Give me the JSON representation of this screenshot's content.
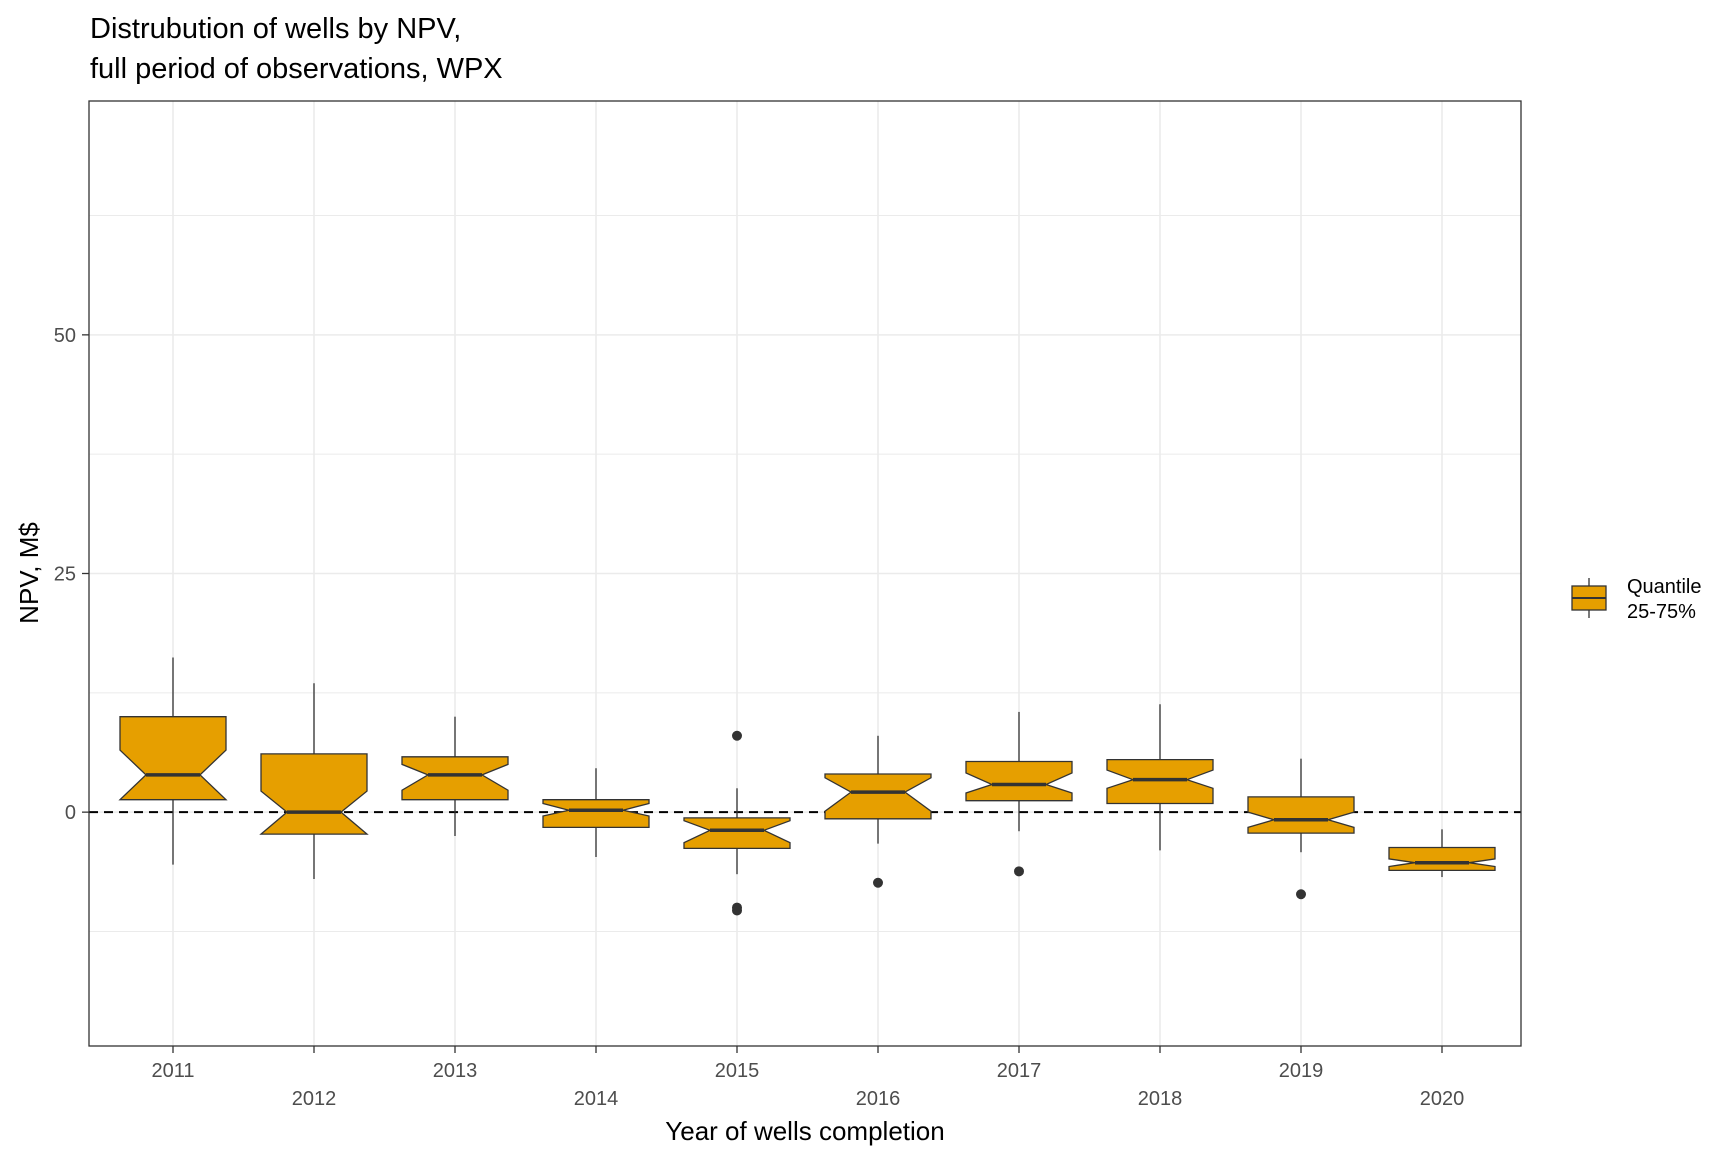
{
  "chart_data": {
    "type": "boxplot",
    "title_lines": [
      "Distrubution of wells by NPV,",
      "full period of observations, WPX"
    ],
    "xlabel": "Year of wells completion",
    "ylabel": "NPV, M$",
    "ylim": [
      -24.5,
      74.5
    ],
    "yticks": [
      0,
      25,
      50
    ],
    "y_minor_gridlines": [
      -12.5,
      12.5,
      37.5,
      62.5
    ],
    "reference_line": 0,
    "grid": true,
    "legend": {
      "position": "right",
      "label": "Quantile\n25-75%",
      "label_lines": [
        "Quantile",
        "25-75%"
      ]
    },
    "colors": {
      "box_fill": "#E69F00",
      "box_stroke": "#333333",
      "grid": "#ebebeb",
      "outlier": "#333333"
    },
    "categories": [
      "2011",
      "2012",
      "2013",
      "2014",
      "2015",
      "2016",
      "2017",
      "2018",
      "2019",
      "2020"
    ],
    "boxes": [
      {
        "year": "2011",
        "min": -5.5,
        "q1": 1.3,
        "median": 3.9,
        "q3": 10.0,
        "max": 16.2,
        "notch_low": 1.3,
        "notch_high": 6.5,
        "outliers": []
      },
      {
        "year": "2012",
        "min": -7.0,
        "q1": -2.3,
        "median": 0.0,
        "q3": 6.1,
        "max": 13.5,
        "notch_low": -2.3,
        "notch_high": 2.2,
        "outliers": []
      },
      {
        "year": "2013",
        "min": -2.5,
        "q1": 1.3,
        "median": 3.9,
        "q3": 5.8,
        "max": 10.0,
        "notch_low": 2.3,
        "notch_high": 5.0,
        "outliers": []
      },
      {
        "year": "2014",
        "min": -4.7,
        "q1": -1.6,
        "median": 0.2,
        "q3": 1.3,
        "max": 4.6,
        "notch_low": -0.4,
        "notch_high": 0.9,
        "outliers": []
      },
      {
        "year": "2015",
        "min": -6.5,
        "q1": -3.8,
        "median": -1.9,
        "q3": -0.6,
        "max": 2.5,
        "notch_low": -3.2,
        "notch_high": -0.9,
        "outliers": [
          8.0,
          -10.0,
          -10.3
        ]
      },
      {
        "year": "2016",
        "min": -3.3,
        "q1": -0.7,
        "median": 2.1,
        "q3": 4.0,
        "max": 8.0,
        "notch_low": 0.1,
        "notch_high": 3.6,
        "outliers": [
          -7.4
        ]
      },
      {
        "year": "2017",
        "min": -2.0,
        "q1": 1.2,
        "median": 2.9,
        "q3": 5.3,
        "max": 10.5,
        "notch_low": 2.0,
        "notch_high": 4.1,
        "outliers": [
          -6.2
        ]
      },
      {
        "year": "2018",
        "min": -4.0,
        "q1": 0.9,
        "median": 3.4,
        "q3": 5.5,
        "max": 11.3,
        "notch_low": 2.5,
        "notch_high": 4.4,
        "outliers": []
      },
      {
        "year": "2019",
        "min": -4.2,
        "q1": -2.2,
        "median": -0.8,
        "q3": 1.6,
        "max": 5.6,
        "notch_low": -1.6,
        "notch_high": 0.0,
        "outliers": [
          -8.6
        ]
      },
      {
        "year": "2020",
        "min": -6.8,
        "q1": -6.1,
        "median": -5.3,
        "q3": -3.7,
        "max": -1.8,
        "notch_low": -5.7,
        "notch_high": -4.9,
        "outliers": []
      }
    ]
  }
}
